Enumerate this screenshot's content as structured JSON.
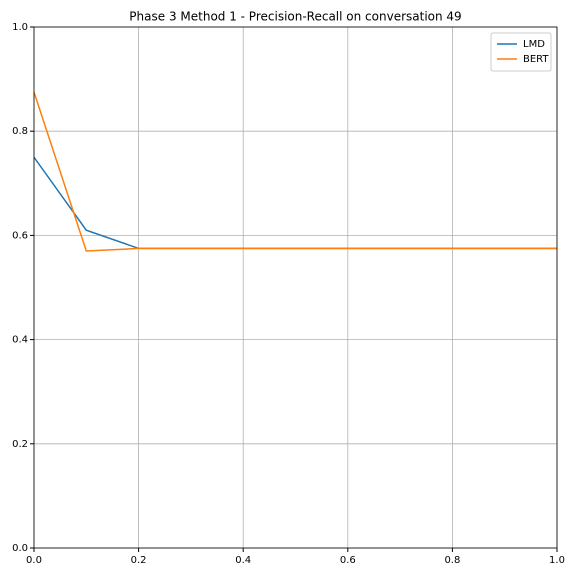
{
  "chart_data": {
    "type": "line",
    "title": "Phase 3 Method 1 - Precision-Recall on conversation 49",
    "x": [
      0.0,
      0.1,
      0.2,
      0.3,
      0.4,
      0.5,
      0.6,
      0.7,
      0.8,
      0.9,
      1.0
    ],
    "series": [
      {
        "name": "LMD",
        "color": "#1f77b4",
        "values": [
          0.75,
          0.61,
          0.575,
          0.575,
          0.575,
          0.575,
          0.575,
          0.575,
          0.575,
          0.575,
          0.575
        ]
      },
      {
        "name": "BERT",
        "color": "#ff7f0e",
        "values": [
          0.875,
          0.57,
          0.575,
          0.575,
          0.575,
          0.575,
          0.575,
          0.575,
          0.575,
          0.575,
          0.575
        ]
      }
    ],
    "xlim": [
      0,
      1
    ],
    "xticks": [
      {
        "value": 0,
        "label": "0.0"
      },
      0.2,
      0.4,
      0.6,
      0.8,
      {
        "value": 1,
        "label": "1.0"
      }
    ],
    "ylim": [
      0,
      1
    ],
    "yticks": [
      {
        "value": 0,
        "label": "0.0"
      },
      0.2,
      0.4,
      0.6,
      0.8,
      {
        "value": 1,
        "label": "1.0"
      }
    ],
    "grid": true,
    "legend": "upper-right"
  }
}
